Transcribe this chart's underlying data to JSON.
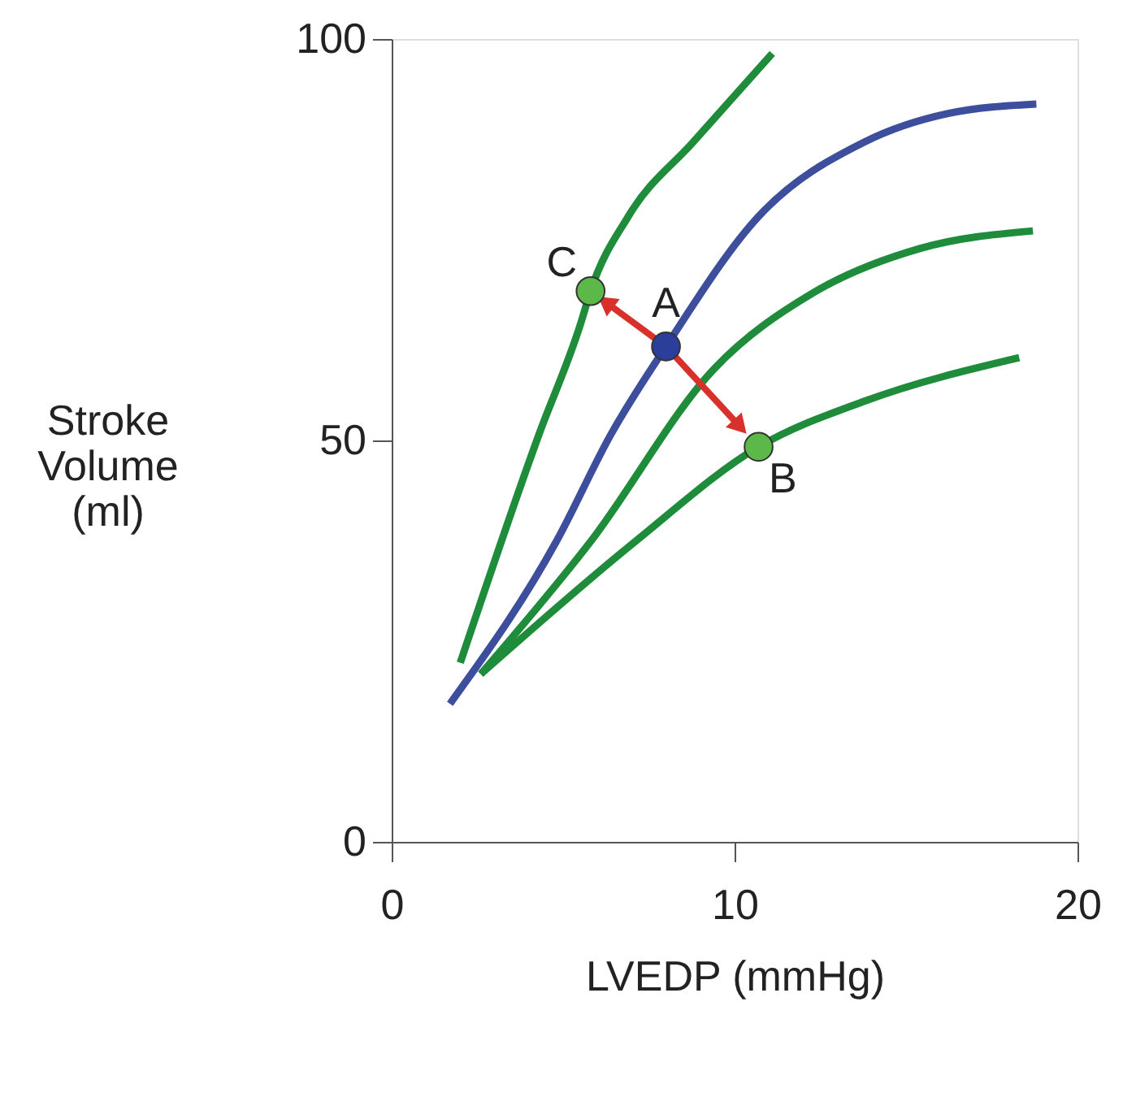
{
  "chart_data": {
    "type": "line",
    "xlabel": "LVEDP (mmHg)",
    "ylabel": "Stroke Volume (ml)",
    "xlim": [
      0,
      20
    ],
    "xticks": [
      0,
      10,
      20
    ],
    "ylim": [
      0,
      100
    ],
    "yticks": [
      0,
      50,
      100
    ],
    "grid": false,
    "marker": "none",
    "line_style": "solid",
    "series": [
      {
        "color": "#1e8c3a",
        "x": [
          2.0,
          4.3,
          5.5,
          5.8,
          6.9,
          8.8,
          11.1
        ],
        "values": [
          22.3,
          50.8,
          64.4,
          68.6,
          77.9,
          87.2,
          98.2
        ]
      },
      {
        "color": "#3d4f9c",
        "x": [
          1.7,
          4.8,
          6.4,
          8.0,
          10.7,
          13.8,
          16.2,
          18.8
        ],
        "values": [
          17.2,
          37.4,
          50.8,
          61.7,
          77.9,
          87.2,
          90.7,
          91.9
        ]
      },
      {
        "color": "#1e8c3a",
        "x": [
          2.6,
          5.8,
          9.4,
          12.3,
          15.4,
          18.7
        ],
        "values": [
          20.9,
          37.4,
          58.9,
          68.4,
          73.9,
          76.1
        ]
      },
      {
        "color": "#1e8c3a",
        "x": [
          2.6,
          7.1,
          10.7,
          13.8,
          18.3
        ],
        "values": [
          20.9,
          37.4,
          49.2,
          54.9,
          60.3
        ]
      },
      {
        "type": "scatter",
        "marker": "circle",
        "x": [
          5.8,
          8.0,
          10.7
        ],
        "values": [
          68.6,
          61.7,
          49.2
        ],
        "colors": [
          "#5cb848",
          "#2b3f9a",
          "#5cb848"
        ]
      }
    ],
    "annotations": [
      {
        "text": "C",
        "x": 5.8,
        "y": 68.6
      },
      {
        "text": "A",
        "x": 8.0,
        "y": 61.7
      },
      {
        "text": "B",
        "x": 10.7,
        "y": 49.2
      }
    ]
  }
}
